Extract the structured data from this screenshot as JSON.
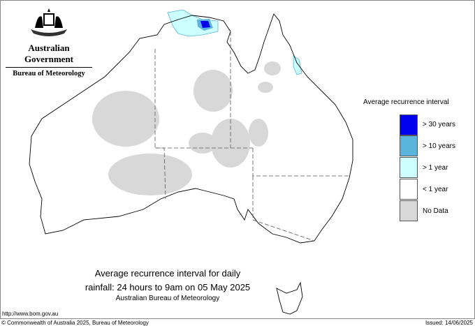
{
  "logo": {
    "line1": "Australian Government",
    "line2": "Bureau of Meteorology"
  },
  "legend": {
    "title": "Average recurrence interval",
    "items": [
      {
        "label": "> 30 years",
        "color": "#0000ee"
      },
      {
        "label": "> 10 years",
        "color": "#5ab4dc"
      },
      {
        "label": "> 1 year",
        "color": "#ccffff"
      },
      {
        "label": "< 1 year",
        "color": "#ffffff"
      },
      {
        "label": "No Data",
        "color": "#d8d8d8"
      }
    ]
  },
  "map": {
    "title_line1": "Average recurrence interval for daily",
    "title_line2": "rainfall: 24 hours to 9am on 05 May 2025",
    "source": "Australian Bureau of Meteorology"
  },
  "footer": {
    "url": "http://www.bom.gov.au",
    "copyright": "© Commonwealth of Australia 2025, Bureau of Meteorology",
    "issued": "Issued: 14/06/2025"
  }
}
